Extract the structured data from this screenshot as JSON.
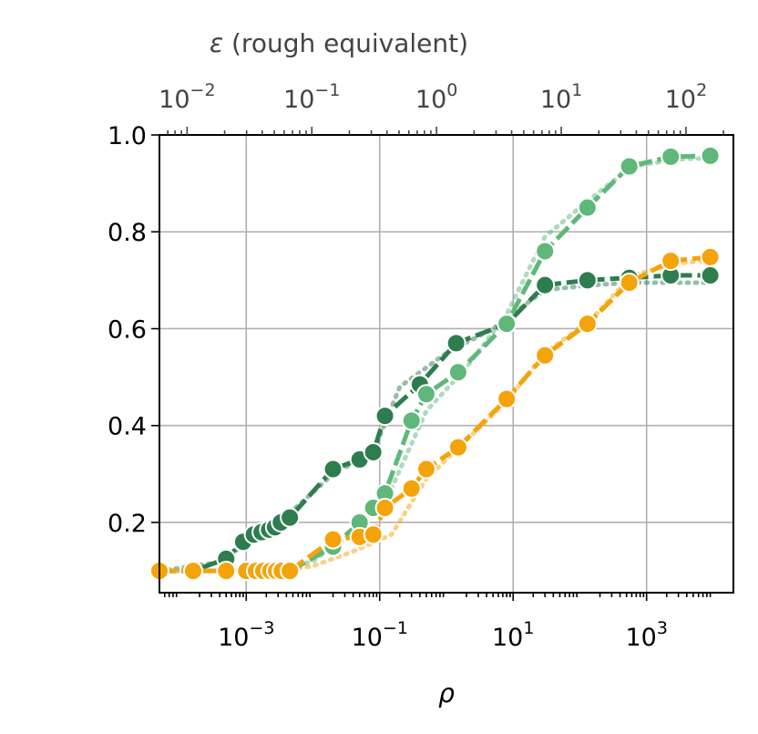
{
  "chart_data": {
    "type": "line",
    "xlabel": "ρ",
    "ylabel": "",
    "xscale": "log",
    "xlim": [
      5e-05,
      20000
    ],
    "ylim": [
      0.055,
      1.0
    ],
    "grid": true,
    "x_ticks": [
      {
        "value": 0.001,
        "base": "10",
        "exp": "−3"
      },
      {
        "value": 0.1,
        "base": "10",
        "exp": "−1"
      },
      {
        "value": 10,
        "base": "10",
        "exp": "1"
      },
      {
        "value": 1000,
        "base": "10",
        "exp": "3"
      }
    ],
    "y_ticks": [
      {
        "value": 0.2,
        "label": "0.2"
      },
      {
        "value": 0.4,
        "label": "0.4"
      },
      {
        "value": 0.6,
        "label": "0.6"
      },
      {
        "value": 0.8,
        "label": "0.8"
      },
      {
        "value": 1.0,
        "label": "1.0"
      }
    ],
    "secondary_x": {
      "label": "ε (rough equivalent)",
      "label_prefix": "ε",
      "label_rest": " (rough equivalent)",
      "xlim": [
        0.006,
        240
      ],
      "ticks": [
        {
          "value": 0.01,
          "base": "10",
          "exp": "−2"
        },
        {
          "value": 0.1,
          "base": "10",
          "exp": "−1"
        },
        {
          "value": 1,
          "base": "10",
          "exp": "0"
        },
        {
          "value": 10,
          "base": "10",
          "exp": "1"
        },
        {
          "value": 100,
          "base": "10",
          "exp": "2"
        }
      ]
    },
    "series": [
      {
        "color": "#2e7d4f",
        "style": "solid-markers",
        "x": [
          5e-05,
          0.00016,
          0.0005,
          0.0009,
          0.0013,
          0.0017,
          0.0022,
          0.0027,
          0.0033,
          0.0045,
          0.02,
          0.05,
          0.08,
          0.12,
          0.4,
          1.4,
          8,
          30,
          130,
          550,
          2300,
          9000
        ],
        "y": [
          0.1,
          0.1,
          0.125,
          0.16,
          0.175,
          0.18,
          0.185,
          0.19,
          0.2,
          0.21,
          0.31,
          0.33,
          0.345,
          0.42,
          0.485,
          0.57,
          0.61,
          0.69,
          0.7,
          0.705,
          0.71,
          0.71
        ]
      },
      {
        "color": "#5fb87a",
        "style": "solid-markers",
        "x": [
          5e-05,
          0.00016,
          0.0005,
          0.001,
          0.0014,
          0.0018,
          0.0023,
          0.0028,
          0.0034,
          0.0045,
          0.02,
          0.05,
          0.08,
          0.12,
          0.3,
          0.5,
          1.5,
          8,
          30,
          130,
          550,
          2300,
          9000
        ],
        "y": [
          0.1,
          0.1,
          0.1,
          0.1,
          0.1,
          0.1,
          0.1,
          0.1,
          0.1,
          0.1,
          0.15,
          0.2,
          0.23,
          0.26,
          0.41,
          0.465,
          0.51,
          0.61,
          0.76,
          0.85,
          0.935,
          0.955,
          0.957
        ]
      },
      {
        "color": "#f5a30a",
        "style": "solid-markers",
        "x": [
          5e-05,
          0.00016,
          0.0005,
          0.001,
          0.0014,
          0.0018,
          0.0023,
          0.0028,
          0.0034,
          0.0045,
          0.02,
          0.05,
          0.08,
          0.12,
          0.3,
          0.5,
          1.5,
          8,
          30,
          130,
          550,
          2300,
          9000
        ],
        "y": [
          0.1,
          0.1,
          0.1,
          0.1,
          0.1,
          0.1,
          0.1,
          0.1,
          0.1,
          0.1,
          0.165,
          0.17,
          0.175,
          0.23,
          0.27,
          0.31,
          0.355,
          0.455,
          0.545,
          0.61,
          0.695,
          0.74,
          0.748
        ]
      },
      {
        "color": "#2e7d4f",
        "style": "dotted",
        "x": [
          5e-05,
          0.0005,
          0.001,
          0.002,
          0.005,
          0.02,
          0.08,
          0.2,
          1,
          5,
          30,
          150,
          600,
          3000,
          9000
        ],
        "y": [
          0.1,
          0.12,
          0.165,
          0.19,
          0.225,
          0.3,
          0.345,
          0.48,
          0.55,
          0.6,
          0.68,
          0.69,
          0.695,
          0.695,
          0.695
        ]
      },
      {
        "color": "#5fb87a",
        "style": "dotted",
        "x": [
          5e-05,
          0.0005,
          0.001,
          0.003,
          0.01,
          0.04,
          0.15,
          0.5,
          2,
          8,
          30,
          150,
          600,
          3000,
          9000
        ],
        "y": [
          0.1,
          0.1,
          0.1,
          0.1,
          0.12,
          0.18,
          0.27,
          0.43,
          0.52,
          0.63,
          0.79,
          0.87,
          0.935,
          0.95,
          0.952
        ]
      },
      {
        "color": "#f5a30a",
        "style": "dotted",
        "x": [
          5e-05,
          0.0005,
          0.001,
          0.003,
          0.01,
          0.04,
          0.15,
          0.5,
          2,
          8,
          30,
          150,
          600,
          3000,
          9000
        ],
        "y": [
          0.1,
          0.1,
          0.1,
          0.1,
          0.11,
          0.14,
          0.175,
          0.29,
          0.37,
          0.45,
          0.55,
          0.62,
          0.71,
          0.735,
          0.742
        ]
      }
    ]
  }
}
